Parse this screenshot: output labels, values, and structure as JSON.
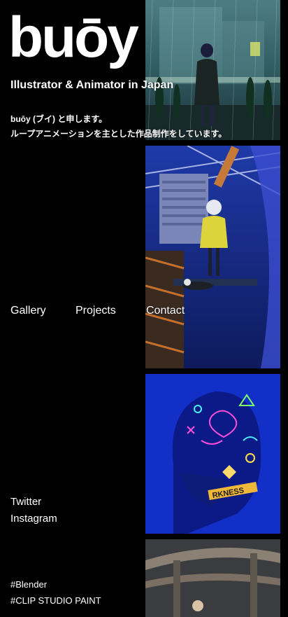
{
  "site": {
    "logo": "buōy",
    "tagline": "Illustrator & Animator in Japan",
    "intro_line1": "buōy (ブイ) と申します。",
    "intro_line2": "ループアニメーションを主とした作品制作をしています。"
  },
  "nav": {
    "gallery": "Gallery",
    "projects": "Projects",
    "contact": "Contact"
  },
  "social": {
    "twitter": "Twitter",
    "instagram": "Instagram"
  },
  "tags": {
    "blender": "#Blender",
    "clip": "#CLIP STUDIO PAINT"
  },
  "artworks": [
    {
      "name": "rainy-station-girl"
    },
    {
      "name": "yellow-coat-girl-city"
    },
    {
      "name": "neon-brain-portrait"
    },
    {
      "name": "highway-overpass"
    }
  ],
  "colors": {
    "background": "#000000",
    "text": "#ffffff",
    "neon_blue": "#1230c8"
  }
}
